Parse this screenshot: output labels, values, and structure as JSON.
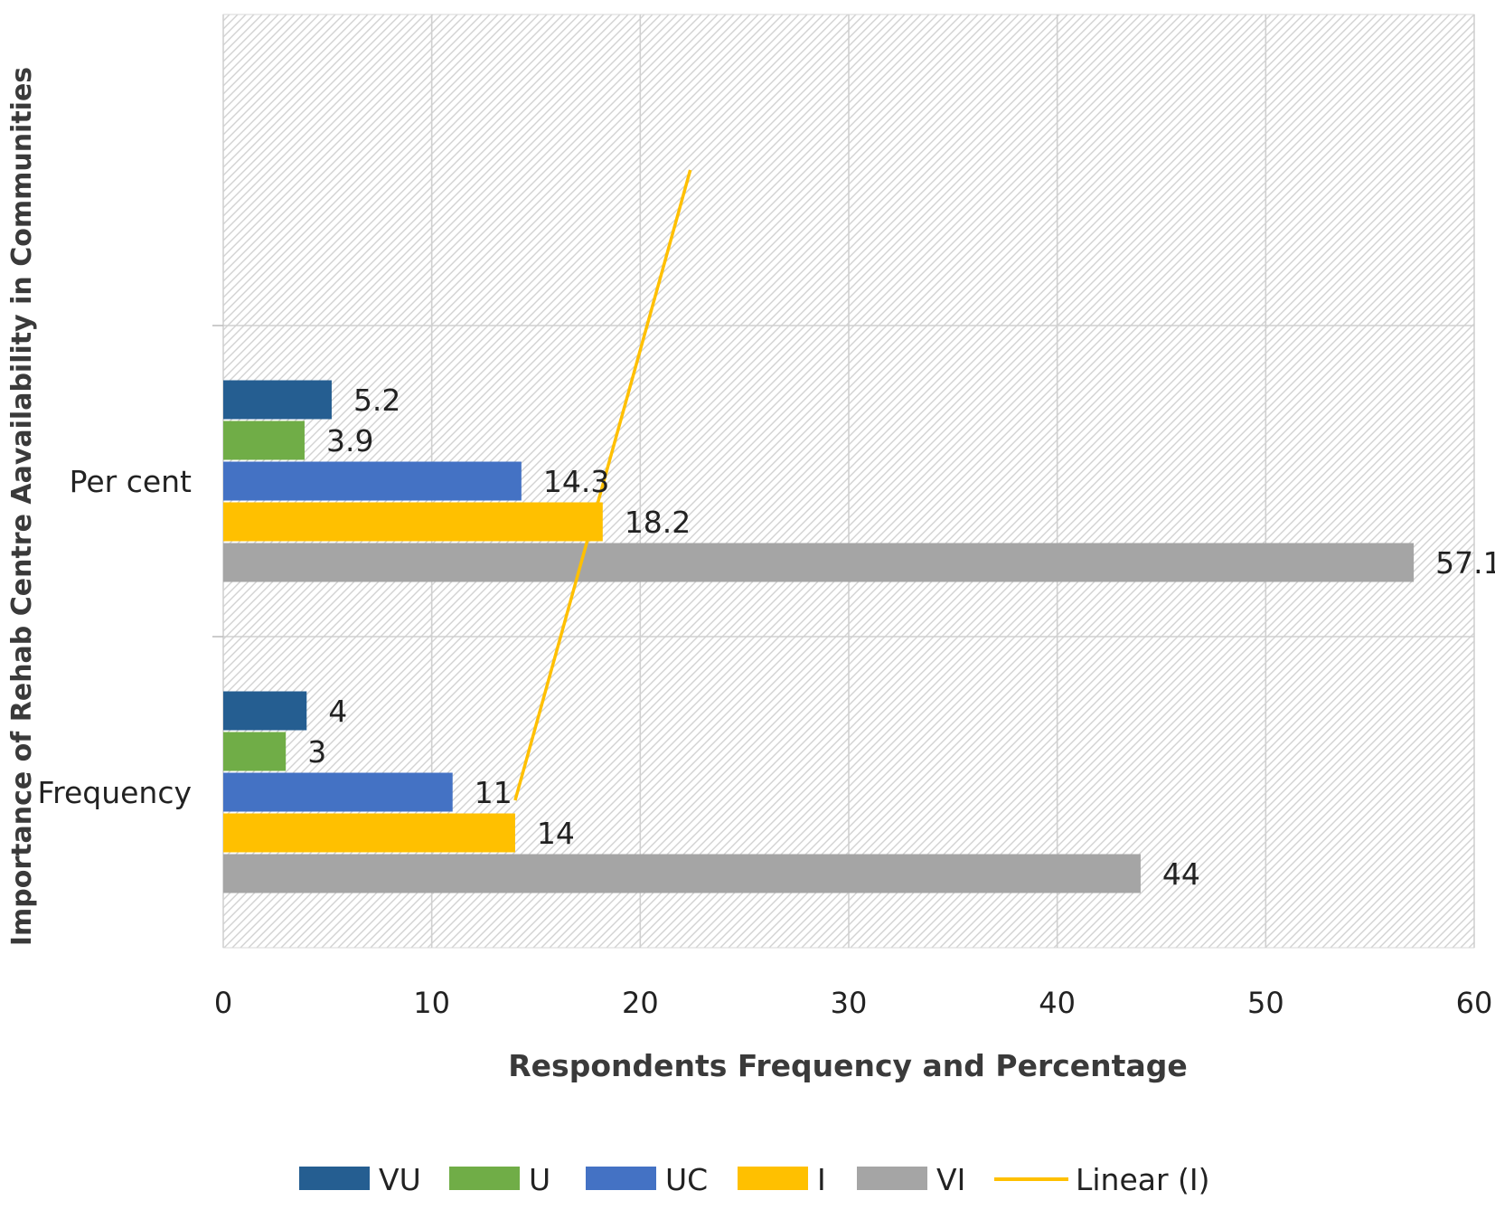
{
  "chart_data": {
    "type": "bar",
    "orientation": "horizontal",
    "xlabel": "Respondents Frequency and Percentage",
    "ylabel": "Importance of Rehab Centre Aavailability in Communities",
    "xlim": [
      0,
      60
    ],
    "xticks": [
      "0",
      "10",
      "20",
      "30",
      "40",
      "50",
      "60"
    ],
    "categories": [
      "Frequency",
      "Per cent"
    ],
    "grid": true,
    "legend_position": "bottom",
    "series": [
      {
        "name": "VU",
        "color": "#255e91",
        "values": [
          4,
          5.2
        ],
        "labels": [
          "4",
          "5.2"
        ]
      },
      {
        "name": "U",
        "color": "#70ad47",
        "values": [
          3,
          3.9
        ],
        "labels": [
          "3",
          "3.9"
        ]
      },
      {
        "name": "UC",
        "color": "#4472c4",
        "values": [
          11,
          14.3
        ],
        "labels": [
          "11",
          "14.3"
        ]
      },
      {
        "name": "I",
        "color": "#ffc000",
        "values": [
          14,
          18.2
        ],
        "labels": [
          "14",
          "18.2"
        ]
      },
      {
        "name": "VI",
        "color": "#a5a5a5",
        "values": [
          44,
          57.1
        ],
        "labels": [
          "44",
          "57.1"
        ]
      }
    ],
    "trendline": {
      "name": "Linear (I)",
      "of_series": "I",
      "type": "linear",
      "color": "#ffc000",
      "values": [
        14,
        18.2,
        22.4
      ]
    }
  }
}
